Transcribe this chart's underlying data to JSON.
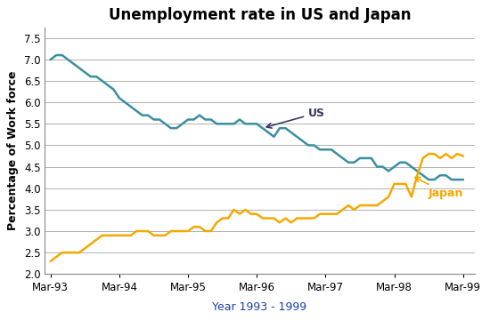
{
  "title": "Unemployment rate in US and Japan",
  "xlabel": "Year 1993 - 1999",
  "ylabel": "Percentage of Work force",
  "ylim": [
    2.0,
    7.75
  ],
  "yticks": [
    2.0,
    2.5,
    3.0,
    3.5,
    4.0,
    4.5,
    5.0,
    5.5,
    6.0,
    6.5,
    7.0,
    7.5
  ],
  "us_color": "#3a8fa0",
  "japan_color": "#f5a800",
  "us_y": [
    7.0,
    7.1,
    7.1,
    7.0,
    6.9,
    6.8,
    6.7,
    6.6,
    6.6,
    6.5,
    6.4,
    6.3,
    6.1,
    6.0,
    5.9,
    5.8,
    5.7,
    5.7,
    5.6,
    5.6,
    5.5,
    5.4,
    5.4,
    5.5,
    5.6,
    5.6,
    5.7,
    5.6,
    5.6,
    5.5,
    5.5,
    5.5,
    5.5,
    5.6,
    5.5,
    5.5,
    5.5,
    5.4,
    5.3,
    5.2,
    5.4,
    5.4,
    5.3,
    5.2,
    5.1,
    5.0,
    5.0,
    4.9,
    4.9,
    4.9,
    4.8,
    4.7,
    4.6,
    4.6,
    4.7,
    4.7,
    4.7,
    4.5,
    4.5,
    4.4,
    4.5,
    4.6,
    4.6,
    4.5,
    4.4,
    4.3,
    4.2,
    4.2,
    4.3,
    4.3,
    4.2,
    4.2,
    4.2
  ],
  "japan_y": [
    2.3,
    2.4,
    2.5,
    2.5,
    2.5,
    2.5,
    2.6,
    2.7,
    2.8,
    2.9,
    2.9,
    2.9,
    2.9,
    2.9,
    2.9,
    3.0,
    3.0,
    3.0,
    2.9,
    2.9,
    2.9,
    3.0,
    3.0,
    3.0,
    3.0,
    3.1,
    3.1,
    3.0,
    3.0,
    3.2,
    3.3,
    3.3,
    3.5,
    3.4,
    3.5,
    3.4,
    3.4,
    3.3,
    3.3,
    3.3,
    3.2,
    3.3,
    3.2,
    3.3,
    3.3,
    3.3,
    3.3,
    3.4,
    3.4,
    3.4,
    3.4,
    3.5,
    3.6,
    3.5,
    3.6,
    3.6,
    3.6,
    3.6,
    3.7,
    3.8,
    4.1,
    4.1,
    4.1,
    3.8,
    4.3,
    4.7,
    4.8,
    4.8,
    4.7,
    4.8,
    4.7,
    4.8,
    4.75
  ],
  "xtick_positions": [
    0,
    12,
    24,
    36,
    48,
    60,
    72
  ],
  "xtick_labels": [
    "Mar-93",
    "Mar-94",
    "Mar-95",
    "Mar-96",
    "Mar-97",
    "Mar-98",
    "Mar-99"
  ],
  "us_label": "US",
  "japan_label": "Japan",
  "title_fontsize": 12,
  "axis_label_fontsize": 9,
  "tick_fontsize": 8.5,
  "annotation_fontsize": 9,
  "linewidth": 1.8,
  "background_color": "#ffffff",
  "grid_color": "#b0b0b0",
  "xlabel_color": "#1a3faa",
  "us_annotation_color": "#3a3a6a",
  "japan_annotation_color": "#f5a800"
}
